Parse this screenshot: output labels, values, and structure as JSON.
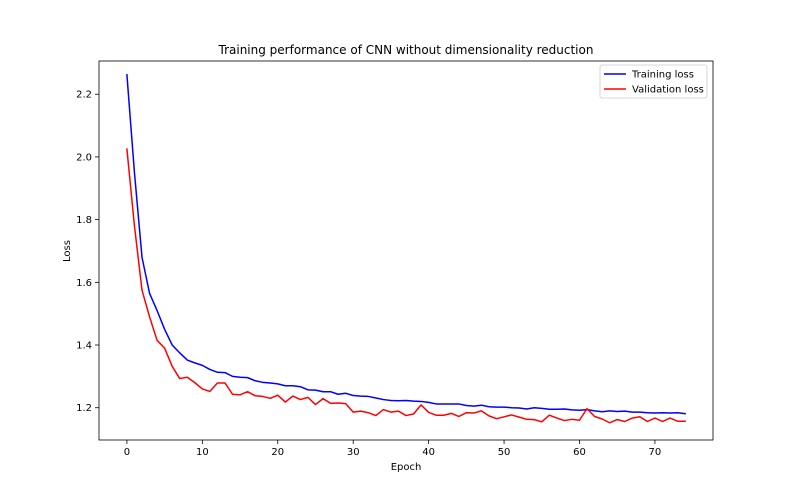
{
  "chart_data": {
    "type": "line",
    "title": "Training performance of CNN without dimensionality reduction",
    "xlabel": "Epoch",
    "ylabel": "Loss",
    "xlim": [
      -3.7,
      77.7
    ],
    "ylim": [
      1.097,
      2.306
    ],
    "xticks": [
      0,
      10,
      20,
      30,
      40,
      50,
      60,
      70
    ],
    "yticks": [
      1.2,
      1.4,
      1.6,
      1.8,
      2.0,
      2.2
    ],
    "ytick_labels": [
      "1.2",
      "1.4",
      "1.6",
      "1.8",
      "2.0",
      "2.2"
    ],
    "legend_position": "top-right",
    "grid": false,
    "series": [
      {
        "name": "Training loss",
        "color": "#0000ff",
        "x": [
          0,
          1,
          2,
          3,
          4,
          5,
          6,
          7,
          8,
          9,
          10,
          11,
          12,
          13,
          14,
          15,
          16,
          17,
          18,
          19,
          20,
          21,
          22,
          23,
          24,
          25,
          26,
          27,
          28,
          29,
          30,
          31,
          32,
          33,
          34,
          35,
          36,
          37,
          38,
          39,
          40,
          41,
          42,
          43,
          44,
          45,
          46,
          47,
          48,
          49,
          50,
          51,
          52,
          53,
          54,
          55,
          56,
          57,
          58,
          59,
          60,
          61,
          62,
          63,
          64,
          65,
          66,
          67,
          68,
          69,
          70,
          71,
          72,
          73,
          74
        ],
        "values": [
          2.262,
          1.95,
          1.68,
          1.565,
          1.51,
          1.45,
          1.4,
          1.375,
          1.352,
          1.343,
          1.335,
          1.322,
          1.313,
          1.312,
          1.3,
          1.297,
          1.296,
          1.286,
          1.281,
          1.279,
          1.276,
          1.27,
          1.27,
          1.267,
          1.257,
          1.256,
          1.251,
          1.251,
          1.243,
          1.246,
          1.239,
          1.237,
          1.236,
          1.231,
          1.226,
          1.223,
          1.222,
          1.223,
          1.221,
          1.22,
          1.217,
          1.212,
          1.212,
          1.212,
          1.212,
          1.207,
          1.205,
          1.208,
          1.203,
          1.202,
          1.202,
          1.2,
          1.199,
          1.196,
          1.2,
          1.198,
          1.195,
          1.195,
          1.196,
          1.193,
          1.192,
          1.194,
          1.19,
          1.187,
          1.19,
          1.188,
          1.189,
          1.186,
          1.186,
          1.184,
          1.183,
          1.184,
          1.183,
          1.184,
          1.181
        ]
      },
      {
        "name": "Validation loss",
        "color": "#ff0000",
        "x": [
          0,
          1,
          2,
          3,
          4,
          5,
          6,
          7,
          8,
          9,
          10,
          11,
          12,
          13,
          14,
          15,
          16,
          17,
          18,
          19,
          20,
          21,
          22,
          23,
          24,
          25,
          26,
          27,
          28,
          29,
          30,
          31,
          32,
          33,
          34,
          35,
          36,
          37,
          38,
          39,
          40,
          41,
          42,
          43,
          44,
          45,
          46,
          47,
          48,
          49,
          50,
          51,
          52,
          53,
          54,
          55,
          56,
          57,
          58,
          59,
          60,
          61,
          62,
          63,
          64,
          65,
          66,
          67,
          68,
          69,
          70,
          71,
          72,
          73,
          74
        ],
        "values": [
          2.025,
          1.78,
          1.575,
          1.49,
          1.415,
          1.39,
          1.332,
          1.293,
          1.297,
          1.28,
          1.26,
          1.252,
          1.279,
          1.279,
          1.243,
          1.241,
          1.251,
          1.238,
          1.236,
          1.23,
          1.24,
          1.218,
          1.237,
          1.226,
          1.233,
          1.21,
          1.229,
          1.214,
          1.215,
          1.213,
          1.186,
          1.189,
          1.184,
          1.175,
          1.194,
          1.186,
          1.189,
          1.175,
          1.18,
          1.209,
          1.185,
          1.176,
          1.176,
          1.182,
          1.172,
          1.184,
          1.183,
          1.19,
          1.174,
          1.165,
          1.171,
          1.177,
          1.17,
          1.163,
          1.162,
          1.155,
          1.176,
          1.167,
          1.159,
          1.163,
          1.16,
          1.197,
          1.172,
          1.164,
          1.152,
          1.162,
          1.156,
          1.167,
          1.171,
          1.156,
          1.167,
          1.156,
          1.167,
          1.157,
          1.157
        ]
      }
    ]
  }
}
